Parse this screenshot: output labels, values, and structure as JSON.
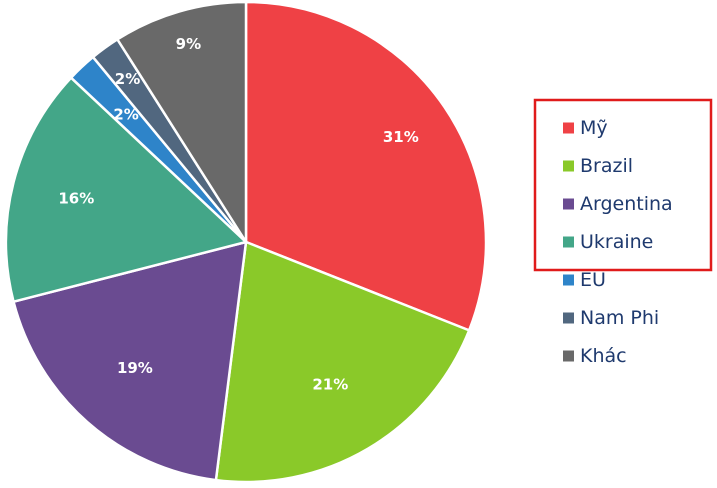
{
  "chart_data": {
    "type": "pie",
    "categories": [
      "Mỹ",
      "Brazil",
      "Argentina",
      "Ukraine",
      "EU",
      "Nam Phi",
      "Khác"
    ],
    "values": [
      31,
      21,
      19,
      16,
      2,
      2,
      9
    ],
    "labels": [
      "31%",
      "21%",
      "19%",
      "16%",
      "2%",
      "2%",
      "9%"
    ],
    "colors": [
      "#ef4145",
      "#8ac929",
      "#6a4b91",
      "#43a688",
      "#2e84c9",
      "#51677f",
      "#696969"
    ],
    "start_angle_deg": 0,
    "direction": "clockwise",
    "legend_position": "right",
    "legend_highlight": [
      "Mỹ",
      "Brazil",
      "Argentina",
      "Ukraine"
    ],
    "legend_highlight_color": "#e01b1b"
  }
}
